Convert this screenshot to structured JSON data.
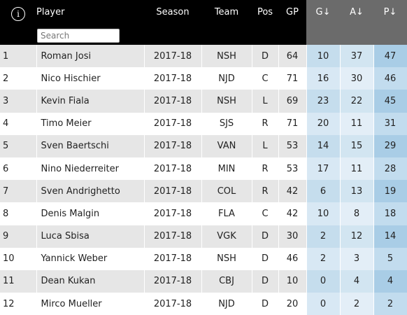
{
  "header": {
    "info_icon": "i",
    "player": "Player",
    "search_placeholder": "Search",
    "season": "Season",
    "team": "Team",
    "pos": "Pos",
    "gp": "GP",
    "g": "G↓",
    "a": "A↓",
    "p": "P↓"
  },
  "rows": [
    {
      "rank": "1",
      "player": "Roman Josi",
      "season": "2017-18",
      "team": "NSH",
      "pos": "D",
      "gp": "64",
      "g": "10",
      "a": "37",
      "p": "47"
    },
    {
      "rank": "2",
      "player": "Nico Hischier",
      "season": "2017-18",
      "team": "NJD",
      "pos": "C",
      "gp": "71",
      "g": "16",
      "a": "30",
      "p": "46"
    },
    {
      "rank": "3",
      "player": "Kevin Fiala",
      "season": "2017-18",
      "team": "NSH",
      "pos": "L",
      "gp": "69",
      "g": "23",
      "a": "22",
      "p": "45"
    },
    {
      "rank": "4",
      "player": "Timo Meier",
      "season": "2017-18",
      "team": "SJS",
      "pos": "R",
      "gp": "71",
      "g": "20",
      "a": "11",
      "p": "31"
    },
    {
      "rank": "5",
      "player": "Sven Baertschi",
      "season": "2017-18",
      "team": "VAN",
      "pos": "L",
      "gp": "53",
      "g": "14",
      "a": "15",
      "p": "29"
    },
    {
      "rank": "6",
      "player": "Nino Niederreiter",
      "season": "2017-18",
      "team": "MIN",
      "pos": "R",
      "gp": "53",
      "g": "17",
      "a": "11",
      "p": "28"
    },
    {
      "rank": "7",
      "player": "Sven Andrighetto",
      "season": "2017-18",
      "team": "COL",
      "pos": "R",
      "gp": "42",
      "g": "6",
      "a": "13",
      "p": "19"
    },
    {
      "rank": "8",
      "player": "Denis Malgin",
      "season": "2017-18",
      "team": "FLA",
      "pos": "C",
      "gp": "42",
      "g": "10",
      "a": "8",
      "p": "18"
    },
    {
      "rank": "9",
      "player": "Luca Sbisa",
      "season": "2017-18",
      "team": "VGK",
      "pos": "D",
      "gp": "30",
      "g": "2",
      "a": "12",
      "p": "14"
    },
    {
      "rank": "10",
      "player": "Yannick Weber",
      "season": "2017-18",
      "team": "NSH",
      "pos": "D",
      "gp": "46",
      "g": "2",
      "a": "3",
      "p": "5"
    },
    {
      "rank": "11",
      "player": "Dean Kukan",
      "season": "2017-18",
      "team": "CBJ",
      "pos": "D",
      "gp": "10",
      "g": "0",
      "a": "4",
      "p": "4"
    },
    {
      "rank": "12",
      "player": "Mirco Mueller",
      "season": "2017-18",
      "team": "NJD",
      "pos": "D",
      "gp": "20",
      "g": "0",
      "a": "2",
      "p": "2"
    }
  ]
}
